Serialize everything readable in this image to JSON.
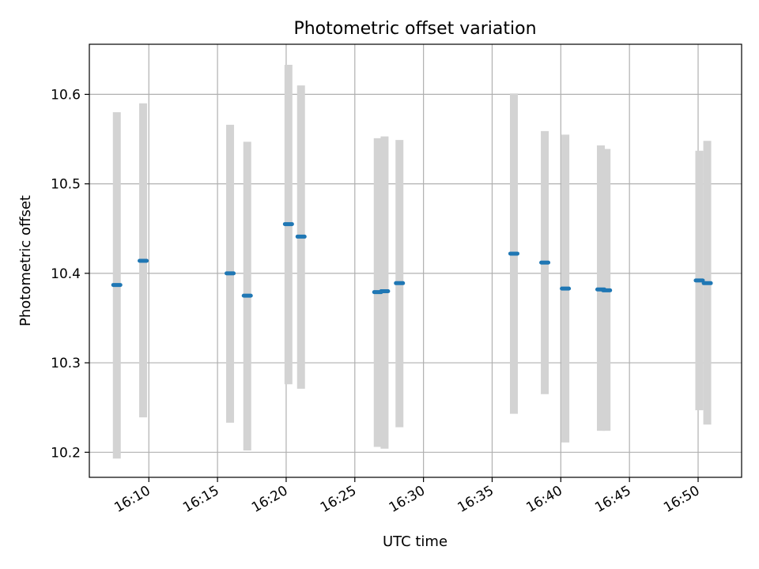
{
  "chart_data": {
    "type": "scatter",
    "title": "Photometric offset variation",
    "xlabel": "UTC time",
    "ylabel": "Photometric offset",
    "x_unit": "UTC time (HH:MM)",
    "xlim": [
      "16:05:40",
      "16:53:10"
    ],
    "ylim": [
      10.172,
      10.656
    ],
    "x_ticks": [
      "16:10",
      "16:15",
      "16:20",
      "16:25",
      "16:30",
      "16:35",
      "16:40",
      "16:45",
      "16:50"
    ],
    "y_ticks": [
      10.2,
      10.3,
      10.4,
      10.5,
      10.6
    ],
    "y_tick_labels": [
      "10.2",
      "10.3",
      "10.4",
      "10.5",
      "10.6"
    ],
    "grid": true,
    "errorbar_color": "#d3d3d3",
    "marker_color": "#1f77b4",
    "series": [
      {
        "points": [
          {
            "x": "16:07:40",
            "y": 10.387,
            "ymin": 10.193,
            "ymax": 10.58
          },
          {
            "x": "16:09:35",
            "y": 10.414,
            "ymin": 10.239,
            "ymax": 10.59
          },
          {
            "x": "16:15:55",
            "y": 10.4,
            "ymin": 10.233,
            "ymax": 10.566
          },
          {
            "x": "16:17:10",
            "y": 10.375,
            "ymin": 10.202,
            "ymax": 10.547
          },
          {
            "x": "16:20:10",
            "y": 10.455,
            "ymin": 10.276,
            "ymax": 10.633
          },
          {
            "x": "16:21:05",
            "y": 10.441,
            "ymin": 10.271,
            "ymax": 10.61
          },
          {
            "x": "16:26:40",
            "y": 10.379,
            "ymin": 10.206,
            "ymax": 10.551
          },
          {
            "x": "16:27:10",
            "y": 10.38,
            "ymin": 10.204,
            "ymax": 10.553
          },
          {
            "x": "16:28:15",
            "y": 10.389,
            "ymin": 10.228,
            "ymax": 10.549
          },
          {
            "x": "16:36:35",
            "y": 10.422,
            "ymin": 10.243,
            "ymax": 10.601
          },
          {
            "x": "16:38:50",
            "y": 10.412,
            "ymin": 10.265,
            "ymax": 10.559
          },
          {
            "x": "16:40:20",
            "y": 10.383,
            "ymin": 10.211,
            "ymax": 10.555
          },
          {
            "x": "16:42:55",
            "y": 10.382,
            "ymin": 10.224,
            "ymax": 10.543
          },
          {
            "x": "16:43:20",
            "y": 10.381,
            "ymin": 10.224,
            "ymax": 10.539
          },
          {
            "x": "16:50:05",
            "y": 10.392,
            "ymin": 10.247,
            "ymax": 10.537
          },
          {
            "x": "16:50:40",
            "y": 10.389,
            "ymin": 10.231,
            "ymax": 10.548
          }
        ]
      }
    ]
  }
}
